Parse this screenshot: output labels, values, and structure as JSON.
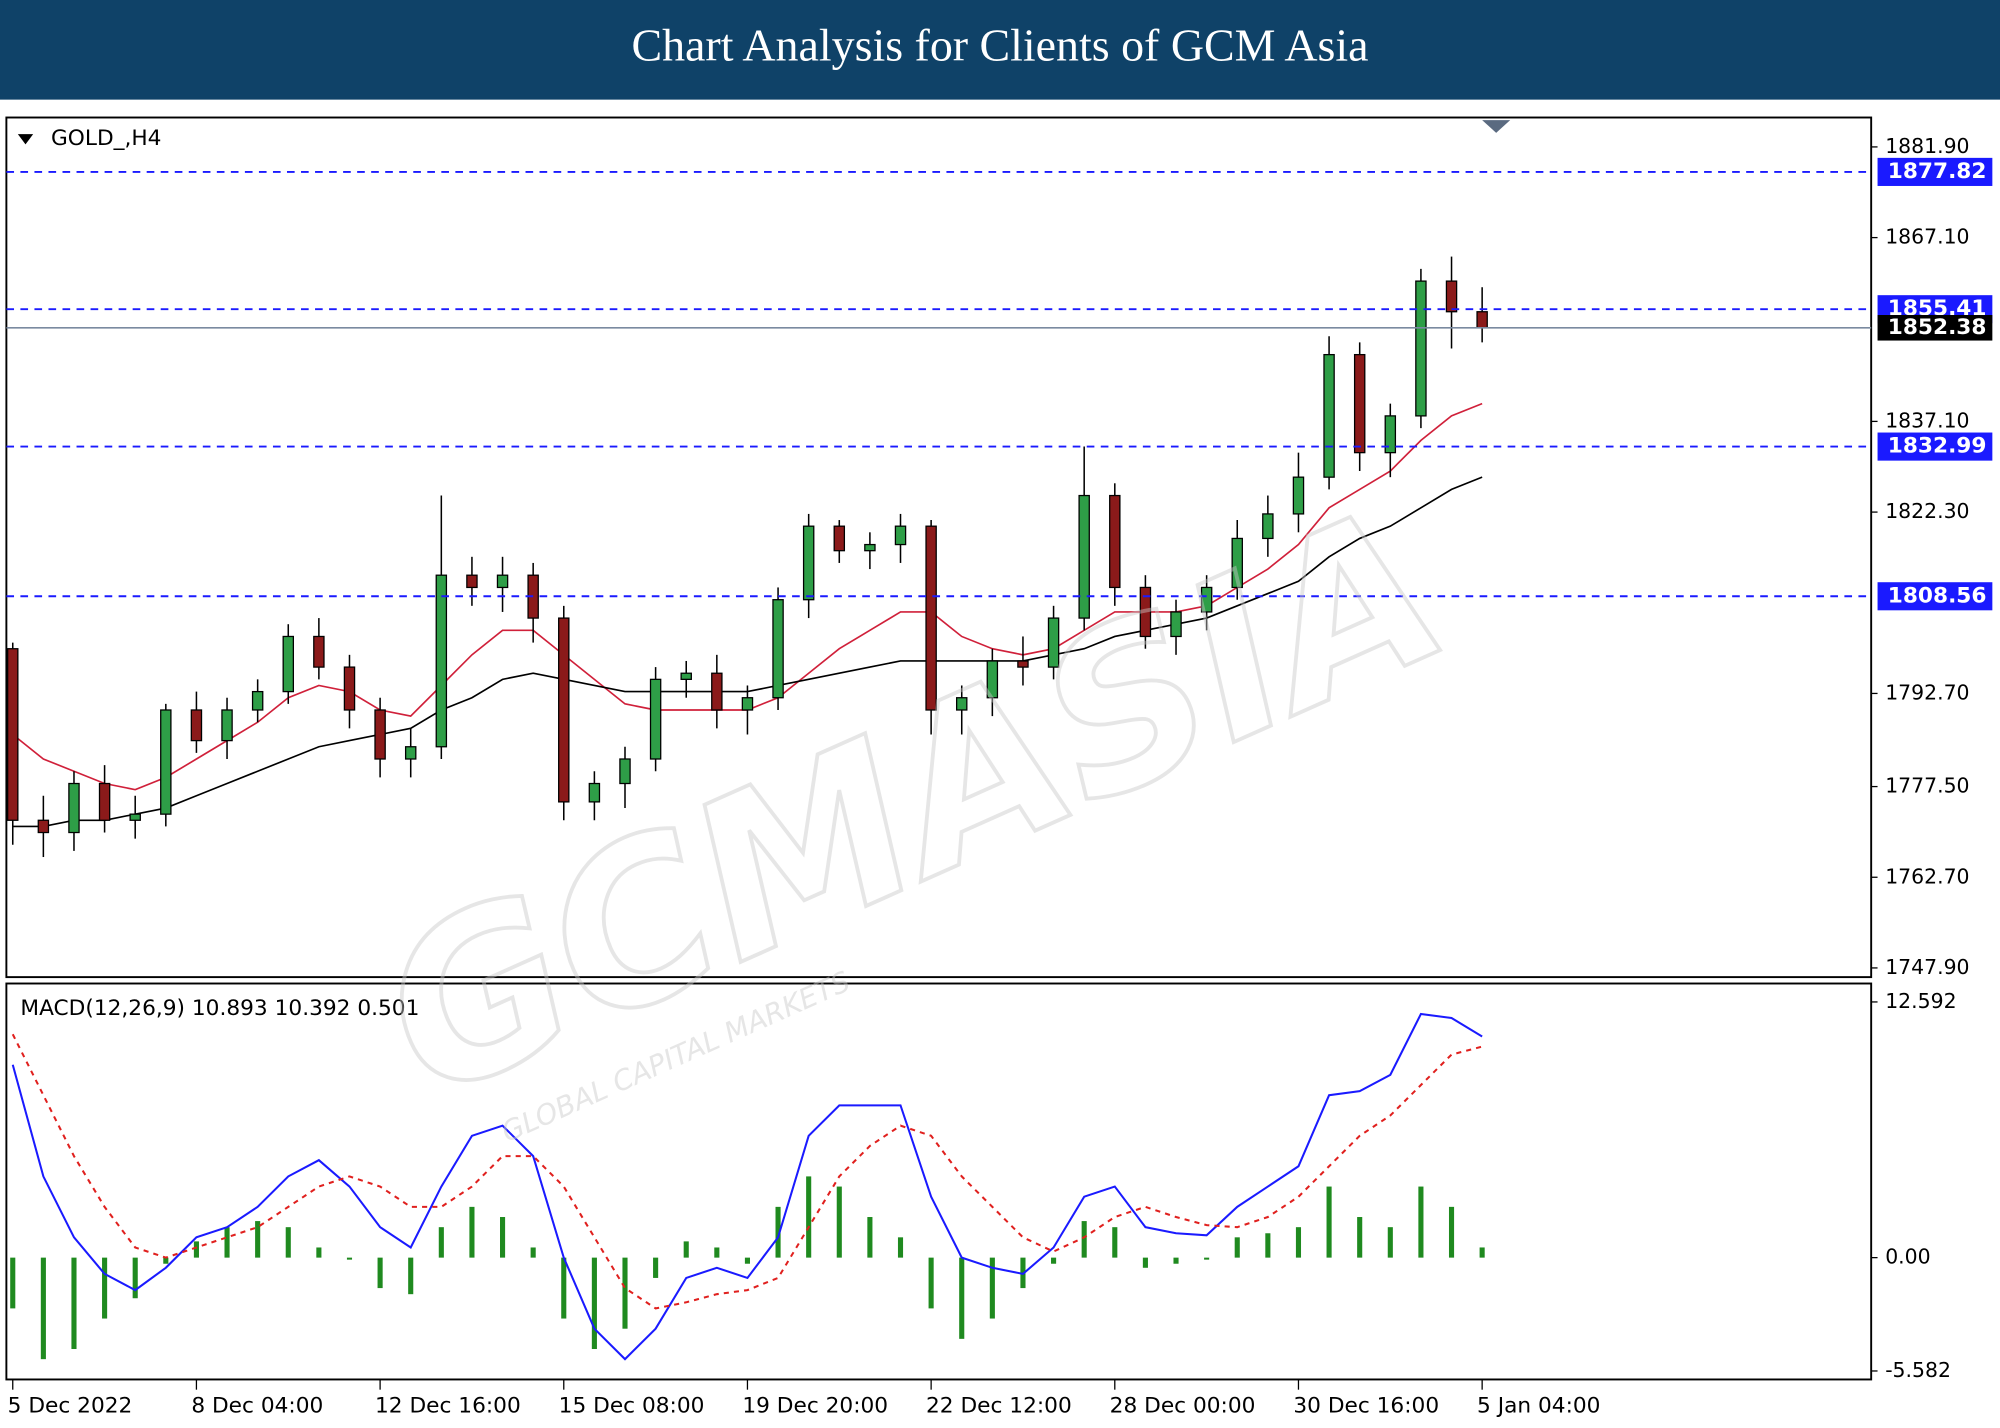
{
  "header": {
    "title": "Chart Analysis for Clients of GCM Asia"
  },
  "watermark": {
    "text": "GCMASIA",
    "subtext": "GLOBAL CAPITAL MARKETS"
  },
  "chart_data": [
    {
      "type": "candlestick",
      "title": "GOLD_,H4",
      "categories": [
        "5 Dec 2022",
        null,
        null,
        null,
        null,
        null,
        "8 Dec 04:00",
        null,
        null,
        null,
        null,
        null,
        "12 Dec 16:00",
        null,
        null,
        null,
        null,
        null,
        "15 Dec 08:00",
        null,
        null,
        null,
        null,
        null,
        "19 Dec 20:00",
        null,
        null,
        null,
        null,
        null,
        "22 Dec 12:00",
        null,
        null,
        null,
        null,
        null,
        "28 Dec 00:00",
        null,
        null,
        null,
        null,
        null,
        "30 Dec 16:00",
        null,
        null,
        null,
        null,
        null,
        "5 Jan 04:00"
      ],
      "open": [
        1800,
        1772,
        1770,
        1778,
        1772,
        1773,
        1790,
        1785,
        1790,
        1793,
        1802,
        1797,
        1790,
        1782,
        1784,
        1812,
        1810,
        1812,
        1805,
        1775,
        1778,
        1782,
        1795,
        1796,
        1790,
        1792,
        1808,
        1820,
        1816,
        1817,
        1820,
        1790,
        1792,
        1798,
        1797,
        1805,
        1825,
        1810,
        1802,
        1806,
        1810,
        1818,
        1822,
        1828,
        1848,
        1832,
        1838,
        1860,
        1855
      ],
      "high": [
        1801,
        1776,
        1780,
        1781,
        1776,
        1791,
        1793,
        1792,
        1795,
        1804,
        1805,
        1799,
        1792,
        1787,
        1825,
        1815,
        1815,
        1814,
        1807,
        1780,
        1784,
        1797,
        1798,
        1799,
        1794,
        1810,
        1822,
        1821,
        1819,
        1822,
        1821,
        1794,
        1800,
        1802,
        1807,
        1833,
        1827,
        1812,
        1808,
        1812,
        1821,
        1825,
        1832,
        1851,
        1850,
        1840,
        1862,
        1864,
        1859
      ],
      "low": [
        1768,
        1766,
        1767,
        1770,
        1769,
        1771,
        1783,
        1782,
        1788,
        1791,
        1795,
        1787,
        1779,
        1779,
        1782,
        1807,
        1806,
        1801,
        1772,
        1772,
        1774,
        1780,
        1792,
        1787,
        1786,
        1790,
        1805,
        1814,
        1813,
        1814,
        1786,
        1786,
        1789,
        1794,
        1795,
        1803,
        1807,
        1800,
        1799,
        1803,
        1808,
        1815,
        1819,
        1826,
        1829,
        1828,
        1836,
        1849,
        1850
      ],
      "close": [
        1772,
        1770,
        1778,
        1772,
        1773,
        1790,
        1785,
        1790,
        1793,
        1802,
        1797,
        1790,
        1782,
        1784,
        1812,
        1810,
        1812,
        1805,
        1775,
        1778,
        1782,
        1795,
        1796,
        1790,
        1792,
        1808,
        1820,
        1816,
        1817,
        1820,
        1790,
        1792,
        1798,
        1797,
        1805,
        1825,
        1810,
        1802,
        1806,
        1810,
        1818,
        1822,
        1828,
        1848,
        1832,
        1838,
        1860,
        1855,
        1852.38
      ],
      "up_color": "#2e9e47",
      "down_color": "#8b1a1a",
      "lines": [
        {
          "color": "#d0203a",
          "values": [
            1786,
            1782,
            1780,
            1778,
            1777,
            1779,
            1782,
            1785,
            1788,
            1792,
            1794,
            1793,
            1790,
            1789,
            1794,
            1799,
            1803,
            1803,
            1799,
            1795,
            1791,
            1790,
            1790,
            1790,
            1790,
            1792,
            1796,
            1800,
            1803,
            1806,
            1806,
            1802,
            1800,
            1799,
            1800,
            1803,
            1806,
            1806,
            1806,
            1807,
            1810,
            1813,
            1817,
            1823,
            1826,
            1829,
            1834,
            1838,
            1840
          ]
        },
        {
          "color": "#000000",
          "values": [
            1771,
            1771,
            1772,
            1772,
            1773,
            1774,
            1776,
            1778,
            1780,
            1782,
            1784,
            1785,
            1786,
            1787,
            1790,
            1792,
            1795,
            1796,
            1795,
            1794,
            1793,
            1793,
            1793,
            1793,
            1793,
            1794,
            1795,
            1796,
            1797,
            1798,
            1798,
            1798,
            1798,
            1798,
            1799,
            1800,
            1802,
            1803,
            1804,
            1805,
            1807,
            1809,
            1811,
            1815,
            1818,
            1820,
            1823,
            1826,
            1828
          ]
        }
      ],
      "levels": [
        {
          "value": 1877.82,
          "color": "#1a1aff"
        },
        {
          "value": 1855.41,
          "color": "#1a1aff"
        },
        {
          "value": 1832.99,
          "color": "#1a1aff"
        },
        {
          "value": 1808.56,
          "color": "#1a1aff"
        }
      ],
      "last": {
        "value": 1852.38,
        "color": "#000000"
      },
      "ylim": [
        1746.4,
        1886.7
      ],
      "yticks": [
        {
          "value": 1881.9,
          "label": "1881.90"
        },
        {
          "value": 1867.1,
          "label": "1867.10"
        },
        {
          "value": 1837.1,
          "label": "1837.10"
        },
        {
          "value": 1822.3,
          "label": "1822.30"
        },
        {
          "value": 1792.7,
          "label": "1792.70"
        },
        {
          "value": 1777.5,
          "label": "1777.50"
        },
        {
          "value": 1762.7,
          "label": "1762.70"
        },
        {
          "value": 1747.9,
          "label": "1747.90"
        }
      ]
    },
    {
      "type": "macd",
      "title": "MACD(12,26,9) 10.893 10.392 0.501",
      "series": [
        {
          "color": "#1a1aff",
          "dashed": false,
          "values": [
            9.5,
            4,
            1,
            -0.8,
            -1.6,
            -0.5,
            1,
            1.5,
            2.5,
            4,
            4.8,
            3.5,
            1.5,
            0.5,
            3.5,
            6,
            6.5,
            5,
            0,
            -3.5,
            -5,
            -3.5,
            -1,
            -0.5,
            -1,
            1,
            6,
            7.5,
            7.5,
            7.5,
            3,
            0,
            -0.5,
            -0.8,
            0.5,
            3,
            3.5,
            1.5,
            1.2,
            1.1,
            2.5,
            3.5,
            4.5,
            8,
            8.2,
            9,
            12,
            11.8,
            10.893
          ]
        },
        {
          "color": "#e0201e",
          "dashed": true,
          "values": [
            11,
            8,
            5,
            2.5,
            0.5,
            0,
            0.5,
            1,
            1.5,
            2.5,
            3.5,
            4,
            3.5,
            2.5,
            2.5,
            3.5,
            5,
            5,
            3.5,
            1,
            -1.5,
            -2.5,
            -2.2,
            -1.8,
            -1.6,
            -1,
            1.5,
            4,
            5.5,
            6.5,
            6,
            4,
            2.5,
            1,
            0.3,
            1,
            2,
            2.5,
            2,
            1.6,
            1.5,
            2,
            3,
            4.5,
            6,
            7,
            8.5,
            10,
            10.392
          ]
        }
      ],
      "histogram": {
        "color": "#1f8a1f",
        "values": [
          -2.5,
          -5,
          -4.5,
          -3,
          -2,
          -0.3,
          0.8,
          1.5,
          1.8,
          1.5,
          0.5,
          -0.1,
          -1.5,
          -1.8,
          1.5,
          2.5,
          2,
          0.5,
          -3,
          -4.5,
          -3.5,
          -1,
          0.8,
          0.5,
          -0.3,
          2.5,
          4,
          3.5,
          2,
          1,
          -2.5,
          -4,
          -3,
          -1.5,
          -0.3,
          1.8,
          1.5,
          -0.5,
          -0.3,
          -0.1,
          1,
          1.2,
          1.5,
          3.5,
          2,
          1.5,
          3.5,
          2.5,
          0.501
        ]
      },
      "ylim": [
        -6.0,
        13.5
      ],
      "yticks": [
        12.592,
        {
          "value": 0,
          "label": "0.00"
        },
        -5.582
      ]
    }
  ]
}
